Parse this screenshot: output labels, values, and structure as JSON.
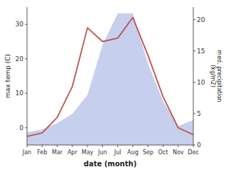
{
  "chart_data": {
    "type": "line",
    "xlabel": "date (month)",
    "ylabel": "max temp (C)",
    "y2label": "med. precipitation\n(kg/m2)",
    "categories": [
      "Jan",
      "Feb",
      "Mar",
      "Apr",
      "May",
      "Jun",
      "Jul",
      "Aug",
      "Sep",
      "Oct",
      "Nov",
      "Dec"
    ],
    "series": [
      {
        "type": "line",
        "color": "#c0504d",
        "values": [
          -2.5,
          -1.5,
          3,
          12,
          29,
          25,
          26,
          32,
          21,
          9,
          0,
          -2
        ]
      },
      {
        "type": "area",
        "color": "#b8c4e8",
        "axis": "y2",
        "values": [
          2,
          2.5,
          3.5,
          5,
          8,
          16,
          21,
          21,
          13,
          7,
          3,
          4
        ]
      }
    ],
    "ylim": [
      -5,
      35
    ],
    "yticks": [
      0,
      10,
      20,
      30
    ],
    "y2lim": [
      0,
      22
    ],
    "y2ticks": [
      0,
      5,
      10,
      15,
      20
    ]
  }
}
